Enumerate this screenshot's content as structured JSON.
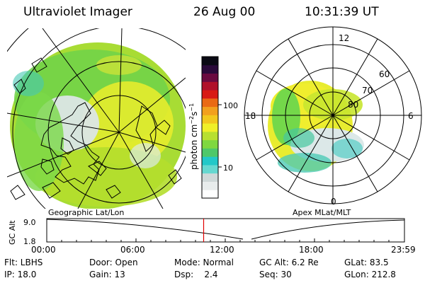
{
  "header": {
    "instrument": "Ultraviolet Imager",
    "date": "26 Aug 00",
    "time": "10:31:39 UT"
  },
  "left_panel": {
    "label": "Geographic Lat/Lon"
  },
  "right_panel": {
    "label": "Apex MLat/MLT",
    "mlt_labels": [
      "12",
      "18",
      "6",
      "0"
    ],
    "lat_labels": [
      "60",
      "70",
      "80"
    ]
  },
  "colorbar": {
    "unit": "photon cm",
    "unit_exp1": "−2",
    "unit_mid": "s",
    "unit_exp2": "−1",
    "ticks": [
      "100",
      "10"
    ],
    "colors": [
      "#ffffff",
      "#e8ecec",
      "#cfd8d8",
      "#66d8d0",
      "#22c8c8",
      "#4ec86a",
      "#7fd840",
      "#b8e030",
      "#f0f028",
      "#f2c81e",
      "#f2a01e",
      "#ea6a14",
      "#d81a14",
      "#b0102a",
      "#6a0a40",
      "#2a0a3a",
      "#0a0a14"
    ]
  },
  "timeline": {
    "axis_label": "GC Alt",
    "y_top": "9.0",
    "y_bottom": "1.8",
    "ticks": [
      "00:00",
      "06:00",
      "12:00",
      "18:00",
      "23:59"
    ],
    "marker_fraction": 0.4386,
    "marker_color": "#e00000"
  },
  "footer": {
    "filter": "Flt: LBHS",
    "door": "Door: Open",
    "mode": "Mode: Normal",
    "gc_alt": "GC Alt: 6.2 Re",
    "glat": "GLat:  83.5",
    "ip": "IP: 18.0",
    "gain": "Gain: 13",
    "dsp": "Dsp:    2.4",
    "seq": "Seq: 30",
    "glon": "GLon: 212.8"
  }
}
